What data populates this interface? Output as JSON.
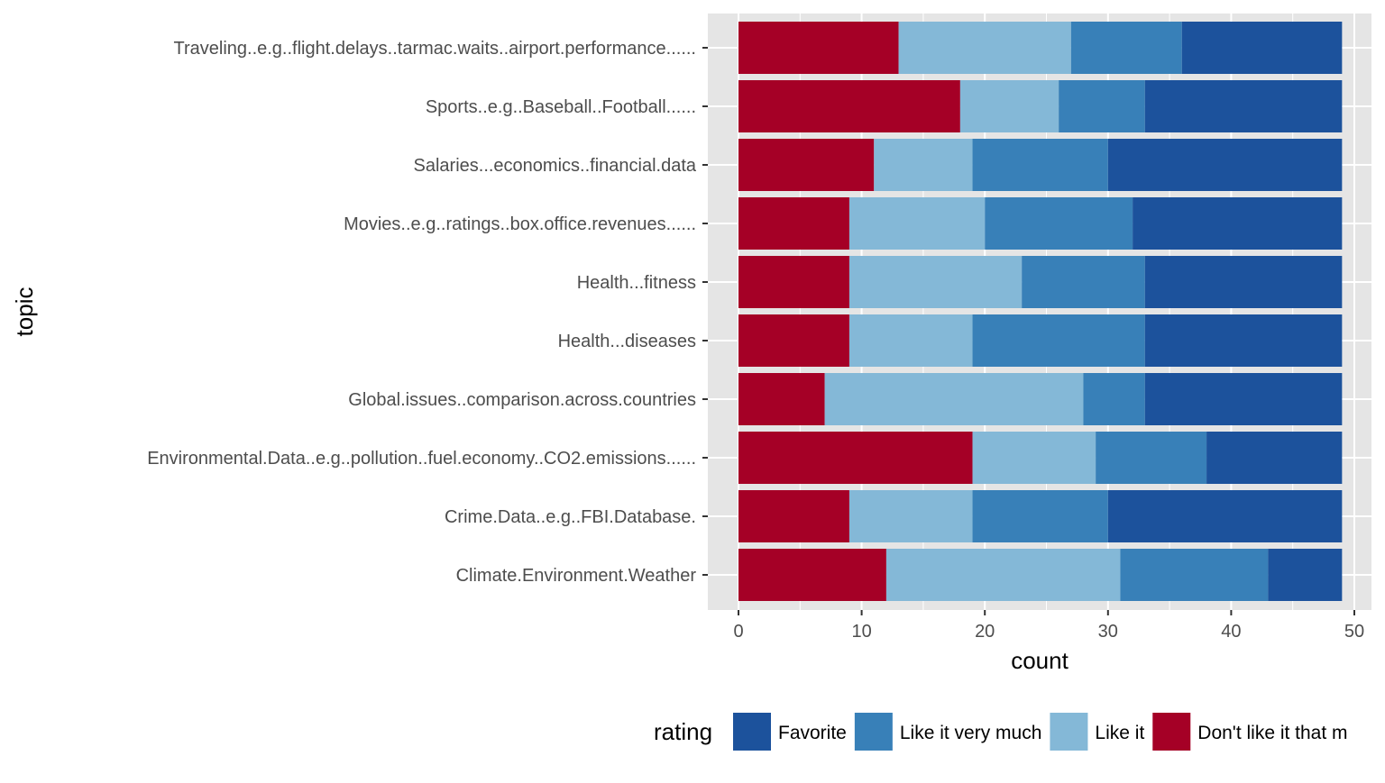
{
  "chart_data": {
    "type": "bar",
    "orientation": "horizontal",
    "stacked": true,
    "title": "",
    "xlabel": "count",
    "ylabel": "topic",
    "xlim": [
      0,
      51
    ],
    "x_ticks": [
      0,
      10,
      20,
      30,
      40,
      50
    ],
    "grid": true,
    "legend_position": "bottom",
    "legend_title": "rating",
    "categories": [
      "Traveling..e.g..flight.delays..tarmac.waits..airport.performance......",
      "Sports..e.g..Baseball..Football......",
      "Salaries...economics..financial.data",
      "Movies..e.g..ratings..box.office.revenues......",
      "Health...fitness",
      "Health...diseases",
      "Global.issues..comparison.across.countries",
      "Environmental.Data..e.g..pollution..fuel.economy..CO2.emissions......",
      "Crime.Data..e.g..FBI.Database.",
      "Climate.Environment.Weather"
    ],
    "series": [
      {
        "name": "Don't like it that m",
        "color": "#a50026",
        "values": [
          13,
          18,
          11,
          9,
          9,
          9,
          7,
          19,
          9,
          12
        ]
      },
      {
        "name": "Like it",
        "color": "#84b8d7",
        "values": [
          14,
          8,
          8,
          11,
          14,
          10,
          21,
          10,
          10,
          19
        ]
      },
      {
        "name": "Like it very much",
        "color": "#3880b8",
        "values": [
          9,
          7,
          11,
          12,
          10,
          14,
          5,
          9,
          11,
          12
        ]
      },
      {
        "name": "Favorite",
        "color": "#1c529c",
        "values": [
          13,
          16,
          19,
          17,
          16,
          16,
          16,
          11,
          19,
          6
        ]
      }
    ],
    "legend_order": [
      "Favorite",
      "Like it very much",
      "Like it",
      "Don't like it that m"
    ]
  },
  "colors": {
    "panel_background": "#e5e5e5",
    "grid_major": "#ffffff",
    "axis_text": "#4d4d4d",
    "title_text": "#000000"
  }
}
